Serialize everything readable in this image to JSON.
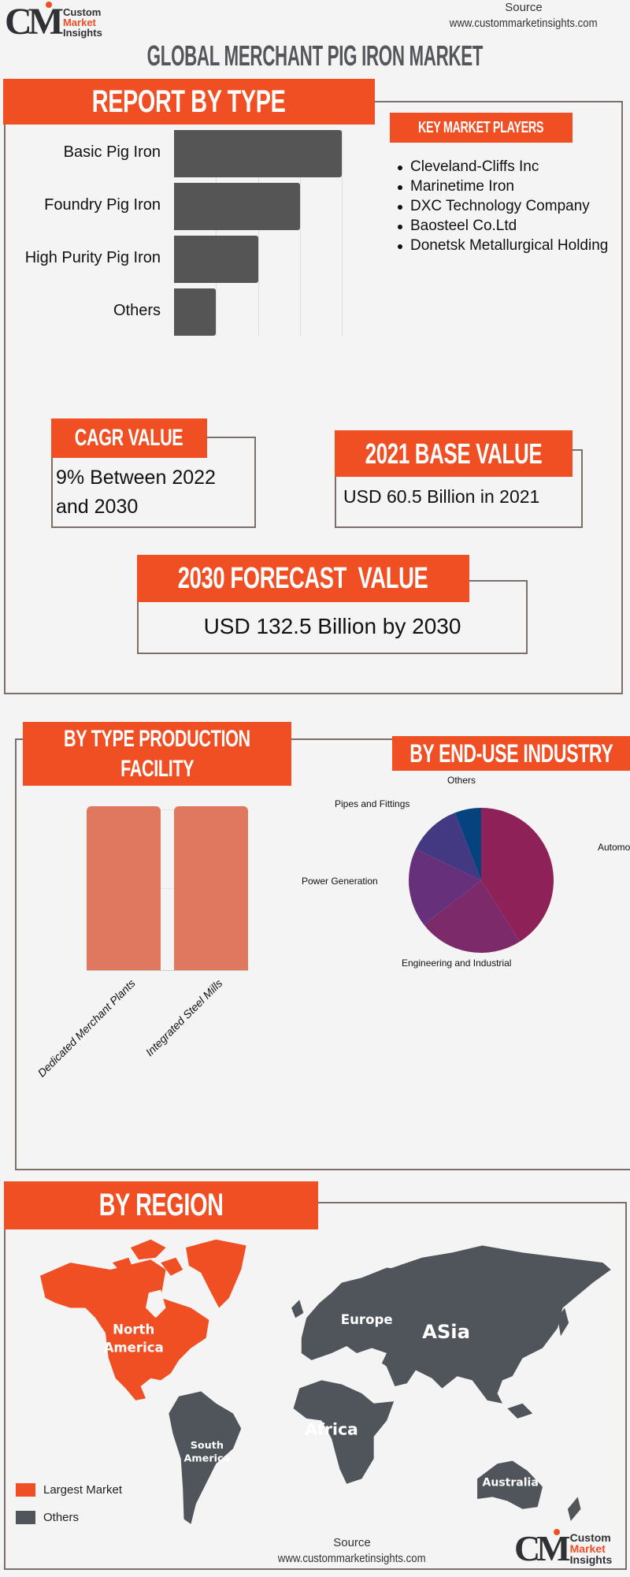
{
  "logo": {
    "line1": "Custom",
    "line2": "Market",
    "line3": "Insights",
    "mark": "CM"
  },
  "source": {
    "label": "Source",
    "url": "www.custommarketinsights.com"
  },
  "title": "GLOBAL MERCHANT PIG IRON MARKET",
  "report_by_type": {
    "heading": "REPORT BY TYPE",
    "chart_data": {
      "type": "bar",
      "orientation": "horizontal",
      "categories": [
        "Basic Pig Iron",
        "Foundry Pig Iron",
        "High Purity Pig Iron",
        "Others"
      ],
      "values": [
        40,
        30,
        20,
        10
      ],
      "xlim": [
        0,
        40
      ],
      "grid": true
    }
  },
  "key_players": {
    "heading": "KEY MARKET PLAYERS",
    "items": [
      "Cleveland-Cliffs Inc",
      "Marinetime Iron",
      "DXC Technology Company",
      "Baosteel Co.Ltd",
      "Donetsk Metallurgical Holding"
    ]
  },
  "cagr": {
    "heading": "CAGR VALUE",
    "line1": "9% Between 2022",
    "line2": "and 2030"
  },
  "base_value": {
    "heading": "2021 BASE VALUE",
    "text": "USD 60.5 Billion in 2021"
  },
  "forecast": {
    "heading": "2030 FORECAST  VALUE",
    "text": "USD 132.5 Billion by 2030"
  },
  "production_facility": {
    "heading_line1": "BY TYPE PRODUCTION",
    "heading_line2": "FACILITY",
    "chart_data": {
      "type": "bar",
      "categories": [
        "Dedicated Merchant Plants",
        "Integrated Steel Mills"
      ],
      "values": [
        50,
        50
      ],
      "ylim": [
        0,
        50
      ],
      "grid": true
    }
  },
  "end_use": {
    "heading": "BY END-USE INDUSTRY",
    "chart_data": {
      "type": "pie",
      "labels": [
        "Automotive",
        "Engineering and Industrial",
        "Power Generation",
        "Pipes and Fittings",
        "Others"
      ],
      "values": [
        41,
        23.5,
        17.6,
        12,
        5.9
      ],
      "colors": [
        "#8e2157",
        "#7d2a6b",
        "#66307a",
        "#433983",
        "#05427e"
      ]
    }
  },
  "region": {
    "heading": "BY REGION",
    "labels": {
      "north": "North",
      "america": "America",
      "europe": "Europe",
      "asia": "ASia",
      "africa": "Africa",
      "south": "South",
      "south_america": "America",
      "australia": "Australia"
    },
    "legend": [
      {
        "label": "Largest Market",
        "color": "#f04e23"
      },
      {
        "label": "Others",
        "color": "#50555c"
      }
    ]
  },
  "colors": {
    "accent": "#f04e23",
    "dark": "#555555",
    "facility": "#e07860",
    "map_other": "#50555c"
  }
}
